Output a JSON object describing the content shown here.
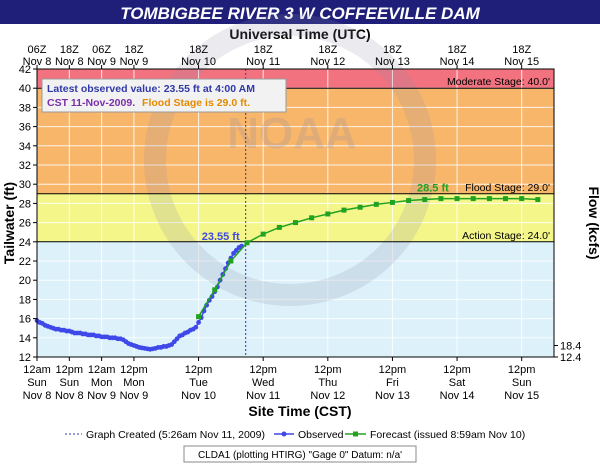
{
  "title": "TOMBIGBEE RIVER 3 W COFFEEVILLE DAM",
  "top_axis_title": "Universal Time (UTC)",
  "bottom_axis_title": "Site Time (CST)",
  "left_axis_title": "Tailwater (ft)",
  "right_axis_title": "Flow (kcfs)",
  "watermark": "NOAA",
  "info_box": {
    "line1": "Latest observed value: 23.55 ft at 4:00 AM",
    "line2_a": "CST 11-Nov-2009.",
    "line2_b": "Flood Stage is 29.0 ft."
  },
  "stages": [
    {
      "name": "Moderate Stage: 40.0'",
      "value": 40.0,
      "color": "#f2737f"
    },
    {
      "name": "Flood Stage: 29.0'",
      "value": 29.0,
      "color": "#f8b66a"
    },
    {
      "name": "Action Stage: 24.0'",
      "value": 24.0,
      "color": "#f4f68a"
    }
  ],
  "annotations": {
    "observed_label": "23.55 ft",
    "forecast_peak_label": "28.5 ft"
  },
  "legend": {
    "created": "Graph Created (5:26am Nov 11, 2009)",
    "observed": "Observed",
    "forecast": "Forecast (issued 8:59am Nov 10)"
  },
  "footer": "CLDA1 (plotting HTIRG)  \"Gage 0\" Datum: n/a'",
  "top_ticks": [
    {
      "h": 0,
      "l1": "06Z",
      "l2": "Nov 8"
    },
    {
      "h": 12,
      "l1": "18Z",
      "l2": "Nov 8"
    },
    {
      "h": 24,
      "l1": "06Z",
      "l2": "Nov 9"
    },
    {
      "h": 36,
      "l1": "18Z",
      "l2": "Nov 9"
    },
    {
      "h": 60,
      "l1": "18Z",
      "l2": "Nov 10"
    },
    {
      "h": 84,
      "l1": "18Z",
      "l2": "Nov 11"
    },
    {
      "h": 108,
      "l1": "18Z",
      "l2": "Nov 12"
    },
    {
      "h": 132,
      "l1": "18Z",
      "l2": "Nov 13"
    },
    {
      "h": 156,
      "l1": "18Z",
      "l2": "Nov 14"
    },
    {
      "h": 180,
      "l1": "18Z",
      "l2": "Nov 15"
    }
  ],
  "bottom_ticks": [
    {
      "h": 0,
      "l1": "12am",
      "l2": "Sun",
      "l3": "Nov 8"
    },
    {
      "h": 12,
      "l1": "12pm",
      "l2": "Sun",
      "l3": "Nov 8"
    },
    {
      "h": 24,
      "l1": "12am",
      "l2": "Mon",
      "l3": "Nov 9"
    },
    {
      "h": 36,
      "l1": "12pm",
      "l2": "Mon",
      "l3": "Nov 9"
    },
    {
      "h": 60,
      "l1": "12pm",
      "l2": "Tue",
      "l3": "Nov 10"
    },
    {
      "h": 84,
      "l1": "12pm",
      "l2": "Wed",
      "l3": "Nov 11"
    },
    {
      "h": 108,
      "l1": "12pm",
      "l2": "Thu",
      "l3": "Nov 12"
    },
    {
      "h": 132,
      "l1": "12pm",
      "l2": "Fri",
      "l3": "Nov 13"
    },
    {
      "h": 156,
      "l1": "12pm",
      "l2": "Sat",
      "l3": "Nov 14"
    },
    {
      "h": 180,
      "l1": "12pm",
      "l2": "Sun",
      "l3": "Nov 15"
    }
  ],
  "flow_ticks": [
    {
      "ft": 13.2,
      "label": "18.4"
    },
    {
      "ft": 12.0,
      "label": "12.4"
    }
  ],
  "chart_data": {
    "type": "line",
    "x_axis": "hours since 12am CST Sun Nov 8",
    "xlim": [
      0,
      192
    ],
    "ylim": [
      12,
      42
    ],
    "ylabel": "Tailwater (ft)",
    "y_ticks": [
      12,
      14,
      16,
      18,
      20,
      22,
      24,
      26,
      28,
      30,
      32,
      34,
      36,
      38,
      40,
      42
    ],
    "created_marker_h": 77.5,
    "series": [
      {
        "name": "Observed",
        "color": "#3f48e8",
        "x": [
          0,
          1,
          2,
          3,
          4,
          5,
          6,
          7,
          8,
          9,
          10,
          11,
          12,
          13,
          14,
          15,
          16,
          17,
          18,
          19,
          20,
          21,
          22,
          23,
          24,
          25,
          26,
          27,
          28,
          29,
          30,
          31,
          32,
          33,
          34,
          35,
          36,
          37,
          38,
          39,
          40,
          41,
          42,
          43,
          44,
          45,
          46,
          47,
          48,
          49,
          50,
          51,
          52,
          53,
          54,
          55,
          56,
          57,
          58,
          59,
          60,
          61,
          62,
          63,
          64,
          65,
          66,
          67,
          68,
          69,
          70,
          71,
          72,
          73,
          74,
          75,
          76
        ],
        "y": [
          15.8,
          15.6,
          15.5,
          15.3,
          15.2,
          15.1,
          15.0,
          14.9,
          14.9,
          14.8,
          14.8,
          14.7,
          14.7,
          14.6,
          14.5,
          14.5,
          14.5,
          14.4,
          14.4,
          14.3,
          14.3,
          14.3,
          14.2,
          14.2,
          14.1,
          14.1,
          14.1,
          14.0,
          14.0,
          14.0,
          13.9,
          13.9,
          13.8,
          13.6,
          13.4,
          13.3,
          13.2,
          13.1,
          13.0,
          12.95,
          12.9,
          12.85,
          12.8,
          12.85,
          12.9,
          13.0,
          13.0,
          13.1,
          13.1,
          13.2,
          13.3,
          13.6,
          13.9,
          14.2,
          14.3,
          14.5,
          14.6,
          14.8,
          14.9,
          15.1,
          15.6,
          16.1,
          16.8,
          17.4,
          17.9,
          18.3,
          18.8,
          19.3,
          20.0,
          20.6,
          21.2,
          21.8,
          22.3,
          22.8,
          23.1,
          23.4,
          23.55
        ]
      },
      {
        "name": "Forecast (issued 8:59am Nov 10)",
        "color": "#21a321",
        "x": [
          60,
          66,
          72,
          78,
          84,
          90,
          96,
          102,
          108,
          114,
          120,
          126,
          132,
          138,
          144,
          150,
          156,
          162,
          168,
          174,
          180,
          186
        ],
        "y": [
          16.2,
          19.0,
          22.0,
          23.9,
          24.8,
          25.5,
          26.0,
          26.5,
          26.9,
          27.3,
          27.6,
          27.9,
          28.1,
          28.3,
          28.4,
          28.5,
          28.5,
          28.5,
          28.5,
          28.5,
          28.5,
          28.4
        ]
      }
    ]
  }
}
